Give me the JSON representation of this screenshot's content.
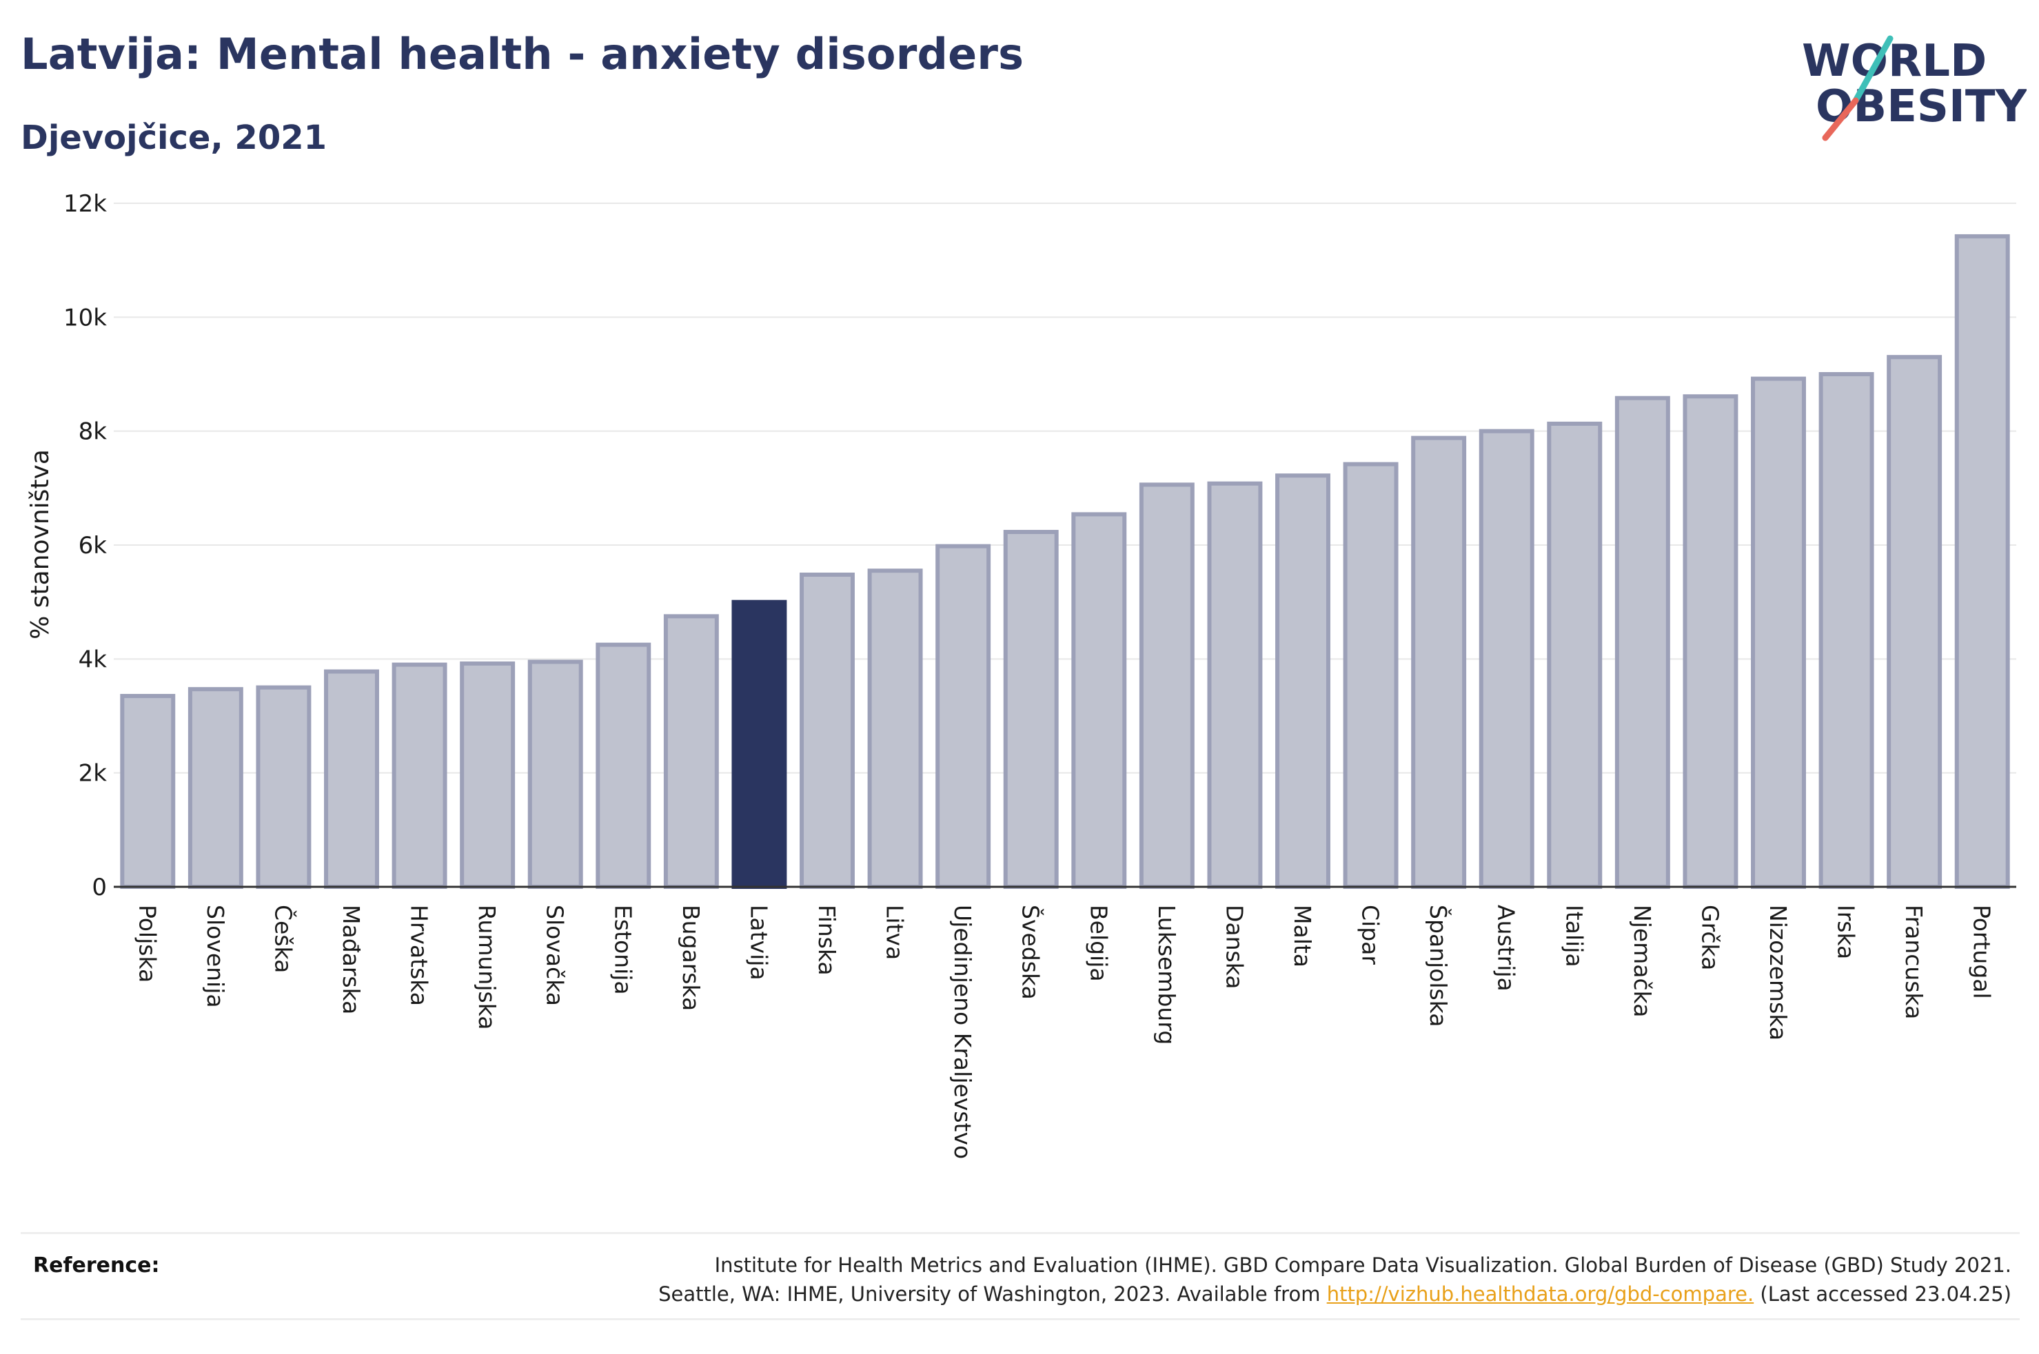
{
  "title": "Latvija: Mental health - anxiety disorders",
  "subtitle": "Djevojčice, 2021",
  "logo": {
    "line1": "WORLD",
    "line2": "OBESITY"
  },
  "colors": {
    "text": "#2a3560",
    "bar": "#bfc2cf",
    "bar_edge": "#9ca0b8",
    "highlight": "#2a3560",
    "link": "#e8a019",
    "grid": "#e8e8e8"
  },
  "reference": {
    "label": "Reference:",
    "line1": "Institute for Health Metrics and Evaluation (IHME). GBD Compare Data Visualization. Global Burden of Disease (GBD) Study 2021.",
    "line2_before": "Seattle, WA: IHME, University of Washington, 2023. Available from",
    "link": "http://vizhub.healthdata.org/gbd-compare.",
    "line2_after": "(Last accessed 23.04.25)"
  },
  "chart_data": {
    "type": "bar",
    "ylabel": "% stanovništva",
    "ylim": [
      0,
      12000
    ],
    "yticks": [
      0,
      2000,
      4000,
      6000,
      8000,
      10000,
      12000
    ],
    "ytick_labels": [
      "0",
      "2k",
      "4k",
      "6k",
      "8k",
      "10k",
      "12k"
    ],
    "grid": true,
    "highlight": "Latvija",
    "categories": [
      "Poljska",
      "Slovenija",
      "Češka",
      "Mađarska",
      "Hrvatska",
      "Rumunjska",
      "Slovačka",
      "Estonija",
      "Bugarska",
      "Latvija",
      "Finska",
      "Litva",
      "Ujedinjeno Kraljevstvo",
      "Švedska",
      "Belgija",
      "Luksemburg",
      "Danska",
      "Malta",
      "Cipar",
      "Španjolska",
      "Austrija",
      "Italija",
      "Njemačka",
      "Grčka",
      "Nizozemska",
      "Irska",
      "Francuska",
      "Portugal"
    ],
    "values": [
      3350,
      3470,
      3500,
      3780,
      3900,
      3920,
      3950,
      4250,
      4750,
      5000,
      5480,
      5550,
      5980,
      6230,
      6540,
      7060,
      7080,
      7220,
      7420,
      7880,
      8000,
      8130,
      8580,
      8610,
      8920,
      9000,
      9300,
      11420
    ]
  }
}
